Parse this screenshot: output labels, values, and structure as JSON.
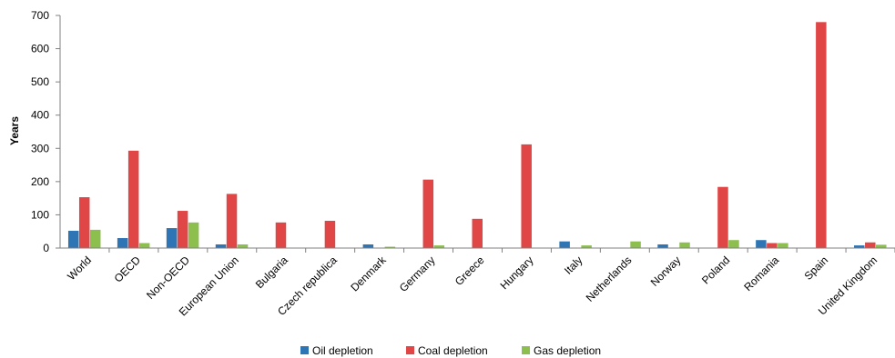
{
  "chart_data": {
    "type": "bar",
    "title": "",
    "xlabel": "",
    "ylabel": "Years",
    "ylim": [
      0,
      700
    ],
    "yticks": [
      0,
      100,
      200,
      300,
      400,
      500,
      600,
      700
    ],
    "grid": false,
    "legend_position": "bottom",
    "categories": [
      "World",
      "OECD",
      "Non-OECD",
      "European Union",
      "Bulgaria",
      "Czech republica",
      "Denmark",
      "Germany",
      "Greece",
      "Hungary",
      "Italy",
      "Netherlands",
      "Norway",
      "Poland",
      "Romania",
      "Spain",
      "United Kingdom"
    ],
    "series": [
      {
        "name": "Oil depletion",
        "color": "#2e75b6",
        "values": [
          52,
          30,
          60,
          11,
          0,
          0,
          11,
          0,
          0,
          0,
          20,
          0,
          11,
          0,
          24,
          0,
          8
        ]
      },
      {
        "name": "Coal depletion",
        "color": "#e04646",
        "values": [
          153,
          293,
          112,
          163,
          77,
          82,
          0,
          206,
          88,
          312,
          0,
          0,
          0,
          184,
          15,
          680,
          17
        ]
      },
      {
        "name": "Gas depletion",
        "color": "#8dbf4f",
        "values": [
          55,
          15,
          77,
          11,
          0,
          0,
          4,
          8,
          0,
          0,
          8,
          20,
          17,
          24,
          15,
          0,
          10
        ]
      }
    ]
  }
}
